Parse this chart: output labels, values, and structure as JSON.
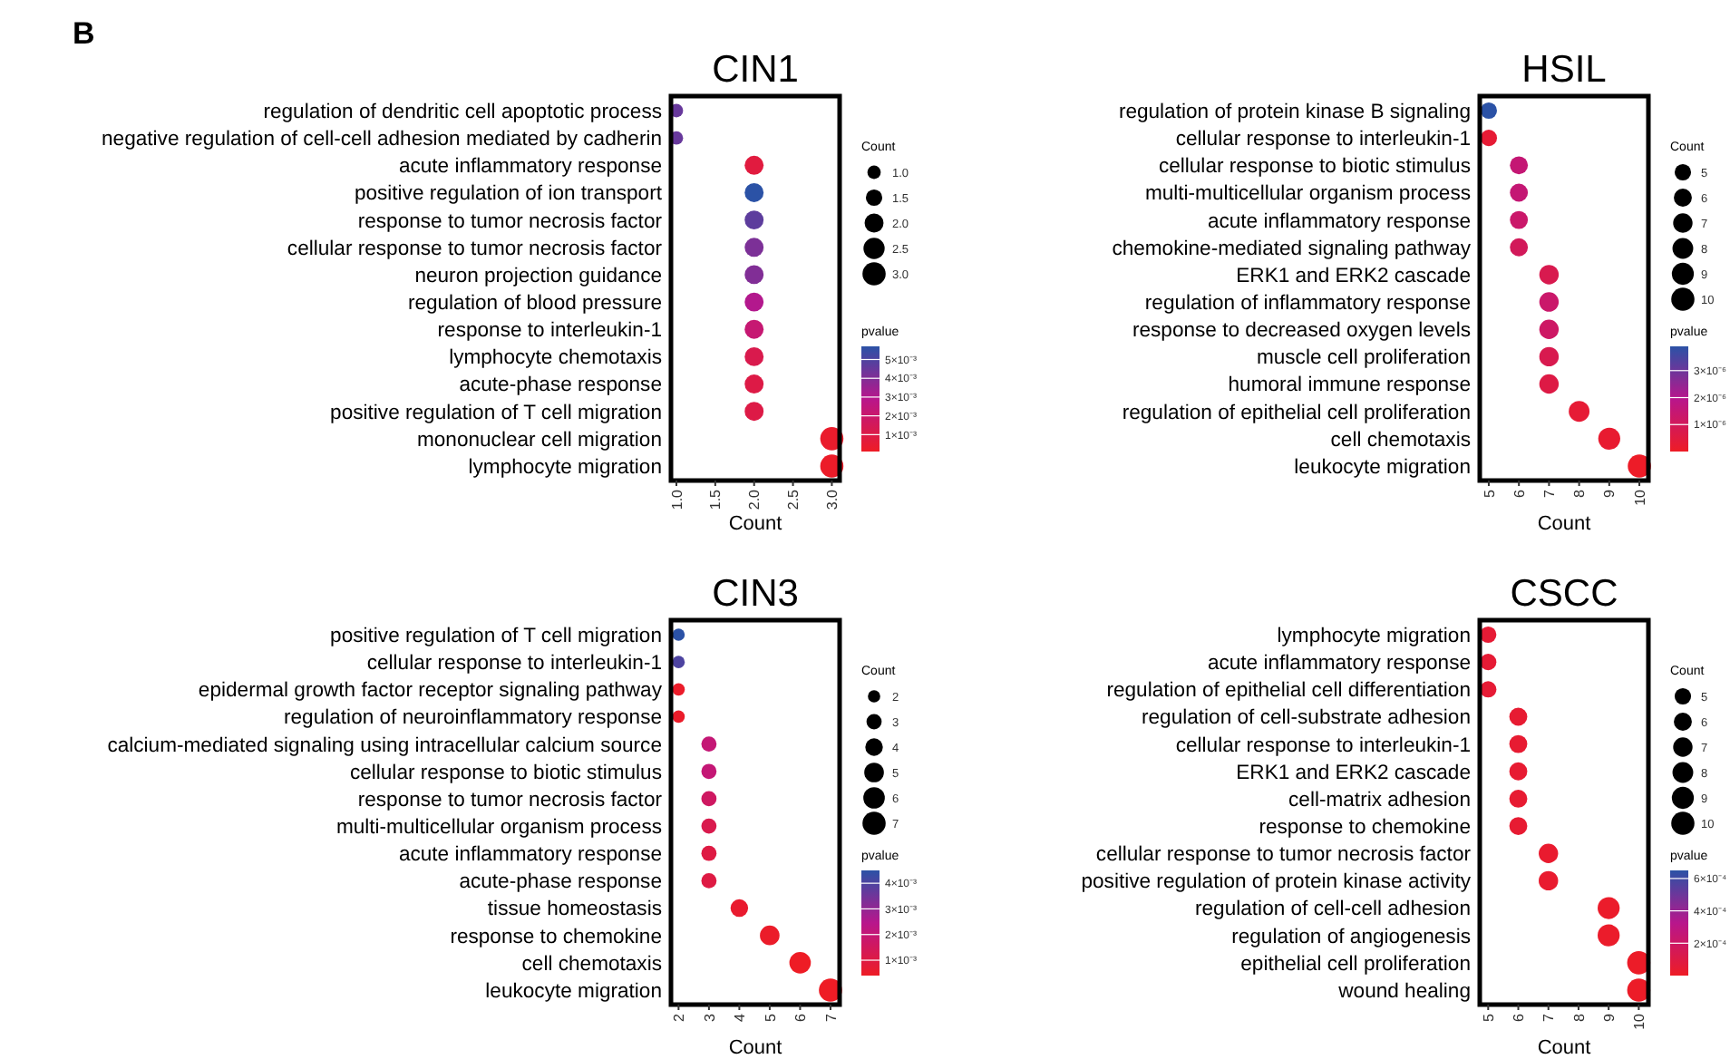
{
  "chart_data": [
    {
      "type": "bubble",
      "orientation": "horizontal",
      "title": "CIN1",
      "xlabel": "Count",
      "legend_title": "Count",
      "clabel": "pvalue",
      "annotations": [
        "B"
      ],
      "categories": [
        "regulation of dendritic cell apoptotic process",
        "negative regulation of cell-cell adhesion mediated by cadherin",
        "acute inflammatory response",
        "positive regulation of ion transport",
        "response to tumor necrosis factor",
        "cellular response to tumor necrosis factor",
        "neuron projection guidance",
        "regulation of blood pressure",
        "response to interleukin-1",
        "lymphocyte chemotaxis",
        "acute-phase response",
        "positive regulation of T cell migration",
        "mononuclear cell migration",
        "lymphocyte migration"
      ],
      "values": [
        1,
        1,
        2,
        2,
        2,
        2,
        2,
        2,
        2,
        2,
        2,
        2,
        3,
        3
      ],
      "sizes": [
        1,
        1,
        2,
        2,
        2,
        2,
        2,
        2,
        2,
        2,
        2,
        2,
        3,
        3
      ],
      "size_legend": [
        {
          "value": 1,
          "label": "1.0"
        },
        {
          "value": 1.5,
          "label": "1.5"
        },
        {
          "value": 2,
          "label": "2.0"
        },
        {
          "value": 2.5,
          "label": "2.5"
        },
        {
          "value": 3,
          "label": "3.0"
        }
      ],
      "cvalues": [
        0.0045,
        0.0045,
        0.0008,
        0.0057,
        0.0047,
        0.0041,
        0.004,
        0.003,
        0.0022,
        0.0012,
        0.001,
        0.001,
        0.0003,
        0.0002
      ],
      "clim": [
        0.0001,
        0.0057
      ],
      "cticks": [
        {
          "value": 0.001,
          "label": "1×10⁻³"
        },
        {
          "value": 0.002,
          "label": "2×10⁻³"
        },
        {
          "value": 0.003,
          "label": "3×10⁻³"
        },
        {
          "value": 0.004,
          "label": "4×10⁻³"
        },
        {
          "value": 0.005,
          "label": "5×10⁻³"
        }
      ],
      "xlim": [
        0.93,
        3.1
      ],
      "xticks": [
        {
          "value": 1,
          "label": "1.0"
        },
        {
          "value": 1.5,
          "label": "1.5"
        },
        {
          "value": 2,
          "label": "2.0"
        },
        {
          "value": 2.5,
          "label": "2.5"
        },
        {
          "value": 3,
          "label": "3.0"
        }
      ]
    },
    {
      "type": "bubble",
      "orientation": "horizontal",
      "title": "HSIL",
      "xlabel": "Count",
      "legend_title": "Count",
      "clabel": "pvalue",
      "categories": [
        "regulation of protein kinase B signaling",
        "cellular response to interleukin-1",
        "cellular response to biotic stimulus",
        "multi-multicellular organism process",
        "acute inflammatory response",
        "chemokine-mediated signaling pathway",
        "ERK1 and ERK2 cascade",
        "regulation of inflammatory response",
        "response to decreased oxygen levels",
        "muscle cell proliferation",
        "humoral immune response",
        "regulation of epithelial cell proliferation",
        "cell chemotaxis",
        "leukocyte migration"
      ],
      "values": [
        5,
        5,
        6,
        6,
        6,
        6,
        7,
        7,
        7,
        7,
        7,
        8,
        9,
        10
      ],
      "sizes": [
        5,
        5,
        6,
        6,
        6,
        6,
        7,
        7,
        7,
        7,
        7,
        8,
        9,
        10
      ],
      "size_legend": [
        5,
        6,
        7,
        8,
        9,
        10
      ],
      "cvalues": [
        3.9e-06,
        3e-07,
        1.5e-06,
        1.5e-06,
        1.3e-06,
        1e-06,
        8e-07,
        1.3e-06,
        1.2e-06,
        8e-07,
        6e-07,
        3e-07,
        2e-07,
        5e-08
      ],
      "clim": [
        0,
        3.9e-06
      ],
      "cticks": [
        {
          "value": 1e-06,
          "label": "1×10⁻⁶"
        },
        {
          "value": 2e-06,
          "label": "2×10⁻⁶"
        },
        {
          "value": 3e-06,
          "label": "3×10⁻⁶"
        }
      ],
      "xlim": [
        4.7,
        10.3
      ],
      "xticks": [
        5,
        6,
        7,
        8,
        9,
        10
      ]
    },
    {
      "type": "bubble",
      "orientation": "horizontal",
      "title": "CIN3",
      "xlabel": "Count",
      "legend_title": "Count",
      "clabel": "pvalue",
      "categories": [
        "positive regulation of T cell migration",
        "cellular response to interleukin-1",
        "epidermal growth factor receptor signaling pathway",
        "regulation of neuroinflammatory response",
        "calcium-mediated signaling using intracellular calcium source",
        "cellular response to biotic stimulus",
        "response to tumor necrosis factor",
        "multi-multicellular organism process",
        "acute inflammatory response",
        "acute-phase response",
        "tissue homeostasis",
        "response to chemokine",
        "cell chemotaxis",
        "leukocyte migration"
      ],
      "values": [
        2,
        2,
        2,
        2,
        3,
        3,
        3,
        3,
        3,
        3,
        4,
        5,
        6,
        7
      ],
      "sizes": [
        2,
        2,
        2,
        2,
        3,
        3,
        3,
        3,
        3,
        3,
        4,
        5,
        6,
        7
      ],
      "size_legend": [
        2,
        3,
        4,
        5,
        6,
        7
      ],
      "cvalues": [
        0.0045,
        0.004,
        0.0005,
        0.0005,
        0.002,
        0.002,
        0.0016,
        0.0012,
        0.001,
        0.001,
        0.0006,
        0.0005,
        0.0004,
        0.0004
      ],
      "clim": [
        0.0004,
        0.0045
      ],
      "cticks": [
        {
          "value": 0.001,
          "label": "1×10⁻³"
        },
        {
          "value": 0.002,
          "label": "2×10⁻³"
        },
        {
          "value": 0.003,
          "label": "3×10⁻³"
        },
        {
          "value": 0.004,
          "label": "4×10⁻³"
        }
      ],
      "xlim": [
        1.75,
        7.3
      ],
      "xticks": [
        2,
        3,
        4,
        5,
        6,
        7
      ]
    },
    {
      "type": "bubble",
      "orientation": "horizontal",
      "title": "CSCC",
      "xlabel": "Count",
      "legend_title": "Count",
      "clabel": "pvalue",
      "categories": [
        "lymphocyte migration",
        "acute inflammatory response",
        "regulation of epithelial cell differentiation",
        "regulation of cell-substrate adhesion",
        "cellular response to interleukin-1",
        "ERK1 and ERK2 cascade",
        "cell-matrix adhesion",
        "response to chemokine",
        "cellular response to tumor necrosis factor",
        "positive regulation of protein kinase activity",
        "regulation of cell-cell adhesion",
        "regulation of angiogenesis",
        "epithelial cell proliferation",
        "wound healing"
      ],
      "values": [
        5,
        5,
        5,
        6,
        6,
        6,
        6,
        6,
        7,
        7,
        9,
        9,
        10,
        10
      ],
      "sizes": [
        5,
        5,
        5,
        6,
        6,
        6,
        6,
        6,
        7,
        7,
        9,
        9,
        10,
        10
      ],
      "size_legend": [
        5,
        6,
        7,
        8,
        9,
        10
      ],
      "cvalues": [
        5e-05,
        5e-05,
        5e-05,
        4e-05,
        4e-05,
        4e-05,
        4e-05,
        4e-05,
        3e-05,
        3e-05,
        2e-05,
        2e-05,
        1e-05,
        1e-05
      ],
      "clim": [
        0,
        0.00065
      ],
      "cticks": [
        {
          "value": 0.0002,
          "label": "2×10⁻⁴"
        },
        {
          "value": 0.0004,
          "label": "4×10⁻⁴"
        },
        {
          "value": 0.0006,
          "label": "6×10⁻⁴"
        }
      ],
      "xlim": [
        4.72,
        10.32
      ],
      "xticks": [
        5,
        6,
        7,
        8,
        9,
        10
      ]
    }
  ]
}
